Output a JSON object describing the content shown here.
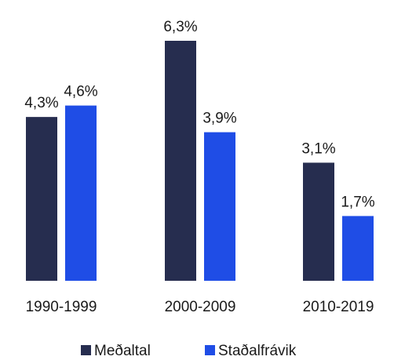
{
  "chart_data": {
    "type": "bar",
    "categories": [
      "1990-1999",
      "2000-2009",
      "2010-2019"
    ],
    "series": [
      {
        "name": "Meðaltal",
        "color": "#262d4f",
        "values": [
          4.3,
          6.3,
          3.1
        ],
        "value_labels": [
          "4,3%",
          "6,3%",
          "3,1%"
        ]
      },
      {
        "name": "Staðalfrávik",
        "color": "#1f4de6",
        "values": [
          4.6,
          3.9,
          1.7
        ],
        "value_labels": [
          "4,6%",
          "3,9%",
          "1,7%"
        ]
      }
    ]
  }
}
